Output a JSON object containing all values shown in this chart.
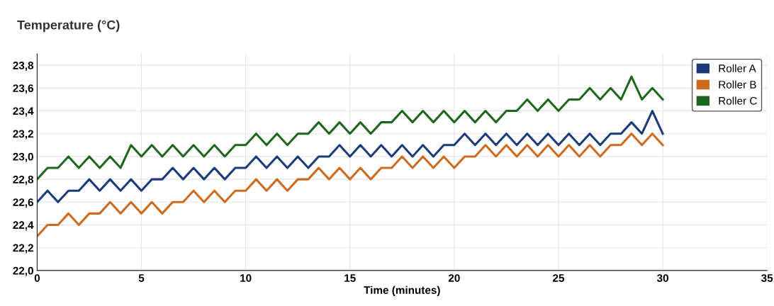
{
  "chart_data": {
    "type": "line",
    "title": "Temperature (°C)",
    "xlabel": "Time (minutes)",
    "x": [
      0,
      0.5,
      1,
      1.5,
      2,
      2.5,
      3,
      3.5,
      4,
      4.5,
      5,
      5.5,
      6,
      6.5,
      7,
      7.5,
      8,
      8.5,
      9,
      9.5,
      10,
      10.5,
      11,
      11.5,
      12,
      12.5,
      13,
      13.5,
      14,
      14.5,
      15,
      15.5,
      16,
      16.5,
      17,
      17.5,
      18,
      18.5,
      19,
      19.5,
      20,
      20.5,
      21,
      21.5,
      22,
      22.5,
      23,
      23.5,
      24,
      24.5,
      25,
      25.5,
      26,
      26.5,
      27,
      27.5,
      28,
      28.5,
      29,
      29.5,
      30
    ],
    "series": [
      {
        "name": "Roller A",
        "color": "#1b3a7a",
        "values": [
          22.6,
          22.7,
          22.6,
          22.7,
          22.7,
          22.8,
          22.7,
          22.8,
          22.7,
          22.8,
          22.7,
          22.8,
          22.8,
          22.9,
          22.8,
          22.9,
          22.8,
          22.9,
          22.8,
          22.9,
          22.9,
          23.0,
          22.9,
          23.0,
          22.9,
          23.0,
          22.9,
          23.0,
          23.0,
          23.1,
          23.0,
          23.1,
          23.0,
          23.1,
          23.0,
          23.1,
          23.0,
          23.1,
          23.0,
          23.1,
          23.1,
          23.2,
          23.1,
          23.2,
          23.1,
          23.2,
          23.1,
          23.2,
          23.1,
          23.2,
          23.1,
          23.2,
          23.1,
          23.2,
          23.1,
          23.2,
          23.2,
          23.3,
          23.2,
          23.4,
          23.2
        ]
      },
      {
        "name": "Roller B",
        "color": "#cc6a1e",
        "values": [
          22.3,
          22.4,
          22.4,
          22.5,
          22.4,
          22.5,
          22.5,
          22.6,
          22.5,
          22.6,
          22.5,
          22.6,
          22.5,
          22.6,
          22.6,
          22.7,
          22.6,
          22.7,
          22.6,
          22.7,
          22.7,
          22.8,
          22.7,
          22.8,
          22.7,
          22.8,
          22.8,
          22.9,
          22.8,
          22.9,
          22.8,
          22.9,
          22.8,
          22.9,
          22.9,
          23.0,
          22.9,
          23.0,
          22.9,
          23.0,
          22.9,
          23.0,
          23.0,
          23.1,
          23.0,
          23.1,
          23.0,
          23.1,
          23.0,
          23.1,
          23.0,
          23.1,
          23.0,
          23.1,
          23.0,
          23.1,
          23.1,
          23.2,
          23.1,
          23.2,
          23.1
        ]
      },
      {
        "name": "Roller C",
        "color": "#1e661e",
        "values": [
          22.8,
          22.9,
          22.9,
          23.0,
          22.9,
          23.0,
          22.9,
          23.0,
          22.9,
          23.1,
          23.0,
          23.1,
          23.0,
          23.1,
          23.0,
          23.1,
          23.0,
          23.1,
          23.0,
          23.1,
          23.1,
          23.2,
          23.1,
          23.2,
          23.1,
          23.2,
          23.2,
          23.3,
          23.2,
          23.3,
          23.2,
          23.3,
          23.2,
          23.3,
          23.3,
          23.4,
          23.3,
          23.4,
          23.3,
          23.4,
          23.3,
          23.4,
          23.3,
          23.4,
          23.3,
          23.4,
          23.4,
          23.5,
          23.4,
          23.5,
          23.4,
          23.5,
          23.5,
          23.6,
          23.5,
          23.6,
          23.5,
          23.7,
          23.5,
          23.6,
          23.5
        ]
      }
    ],
    "xlim": [
      0,
      35
    ],
    "xticks": [
      0,
      5,
      10,
      15,
      20,
      25,
      30,
      35
    ],
    "ylim": [
      22.0,
      23.9
    ],
    "yticks": [
      {
        "value": 22.0,
        "label": "22,0"
      },
      {
        "value": 22.2,
        "label": "22,2"
      },
      {
        "value": 22.4,
        "label": "22,4"
      },
      {
        "value": 22.6,
        "label": "22,6"
      },
      {
        "value": 22.8,
        "label": "22,8"
      },
      {
        "value": 23.0,
        "label": "23,0"
      },
      {
        "value": 23.2,
        "label": "23,2"
      },
      {
        "value": 23.4,
        "label": "23,4"
      },
      {
        "value": 23.6,
        "label": "23,6"
      },
      {
        "value": 23.8,
        "label": "23,8"
      }
    ],
    "grid": true,
    "legend": "top right",
    "marker": "none",
    "line_style": "solid"
  }
}
